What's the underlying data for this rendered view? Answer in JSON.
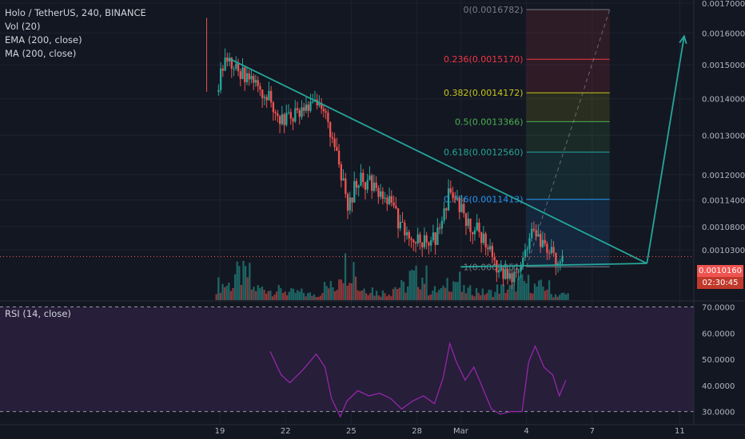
{
  "legend": {
    "symbol": "Holo / TetherUS, 240, BINANCE",
    "vol": "Vol (20)",
    "ema": "EMA (200, close)",
    "ma": "MA (200, close)",
    "rsi": "RSI (14, close)"
  },
  "colors": {
    "background": "#131722",
    "bull": "#26a69a",
    "bear": "#ef5350",
    "trendline": "#26a69a",
    "rsi_line": "#9c27b0",
    "rsi_band": "#2a1f3d",
    "price_tag": "#ef5350",
    "countdown_tag": "#ef5350"
  },
  "price_tag": "0.0010160",
  "countdown": "02:30:45",
  "chart_data": [
    {
      "type": "candlestick",
      "title": "Holo / TetherUS, 240, BINANCE",
      "price_scale": "log",
      "ylim": [
        0.00093,
        0.0017
      ],
      "y_ticks": [
        0.0017,
        0.0016,
        0.0015,
        0.0014,
        0.0013,
        0.0012,
        0.00114,
        0.00108,
        0.00103
      ],
      "y_tick_labels": [
        "0.0017000",
        "0.0016000",
        "0.0015000",
        "0.0014000",
        "0.0013000",
        "0.0012000",
        "0.0011400",
        "0.0010800",
        "0.0010300"
      ],
      "x_tick_labels": [
        "19",
        "22",
        "25",
        "28",
        "Mar",
        "4",
        "7",
        "11"
      ],
      "x_ticks_day": [
        0,
        3,
        6,
        9,
        11,
        14,
        17,
        21
      ],
      "close_path": [
        {
          "t": -0.1,
          "v": 0.00142
        },
        {
          "t": 0.0,
          "v": 0.00148
        },
        {
          "t": 0.4,
          "v": 0.00152
        },
        {
          "t": 0.9,
          "v": 0.00147
        },
        {
          "t": 1.5,
          "v": 0.00146
        },
        {
          "t": 2.2,
          "v": 0.0014
        },
        {
          "t": 2.8,
          "v": 0.00134
        },
        {
          "t": 3.5,
          "v": 0.00136
        },
        {
          "t": 4.2,
          "v": 0.00138
        },
        {
          "t": 4.8,
          "v": 0.00137
        },
        {
          "t": 5.3,
          "v": 0.00124
        },
        {
          "t": 5.8,
          "v": 0.00113
        },
        {
          "t": 6.3,
          "v": 0.00119
        },
        {
          "t": 6.8,
          "v": 0.00118
        },
        {
          "t": 7.3,
          "v": 0.00115
        },
        {
          "t": 7.8,
          "v": 0.00113
        },
        {
          "t": 8.3,
          "v": 0.00107
        },
        {
          "t": 8.8,
          "v": 0.00106
        },
        {
          "t": 9.3,
          "v": 0.00105
        },
        {
          "t": 9.9,
          "v": 0.00106
        },
        {
          "t": 10.4,
          "v": 0.00115
        },
        {
          "t": 10.8,
          "v": 0.00113
        },
        {
          "t": 11.3,
          "v": 0.00109
        },
        {
          "t": 11.8,
          "v": 0.00107
        },
        {
          "t": 12.3,
          "v": 0.00103
        },
        {
          "t": 12.8,
          "v": 0.00098
        },
        {
          "t": 13.3,
          "v": 0.00097
        },
        {
          "t": 13.8,
          "v": 0.00101
        },
        {
          "t": 14.2,
          "v": 0.00107
        },
        {
          "t": 14.6,
          "v": 0.00104
        },
        {
          "t": 15.0,
          "v": 0.00103
        },
        {
          "t": 15.4,
          "v": 0.00101
        },
        {
          "t": 15.7,
          "v": 0.001016
        }
      ],
      "volume_relative": [
        0.4,
        0.65,
        0.3,
        0.25,
        0.2,
        0.15,
        0.35,
        0.9,
        0.3,
        0.2,
        0.35,
        0.6,
        0.25,
        0.5,
        0.25,
        0.2,
        0.3,
        0.45,
        0.35,
        0.15
      ]
    },
    {
      "type": "fibonacci_retracement",
      "levels": [
        {
          "ratio": "0",
          "value": 0.0016782,
          "label": "0(0.0016782)",
          "color": "#787b86"
        },
        {
          "ratio": "0.236",
          "value": 0.001517,
          "label": "0.236(0.0015170)",
          "color": "#f23645"
        },
        {
          "ratio": "0.382",
          "value": 0.0014172,
          "label": "0.382(0.0014172)",
          "color": "#c6c619"
        },
        {
          "ratio": "0.5",
          "value": 0.0013366,
          "label": "0.5(0.0013366)",
          "color": "#4caf50"
        },
        {
          "ratio": "0.618",
          "value": 0.001256,
          "label": "0.618(0.0012560)",
          "color": "#26a69a"
        },
        {
          "ratio": "0.786",
          "value": 0.0011413,
          "label": "0.786(0.0011413)",
          "color": "#2196f3"
        },
        {
          "ratio": "1",
          "value": 0.0009951,
          "label": "1(0.0009951)",
          "color": "#787b86"
        }
      ]
    },
    {
      "type": "trendline",
      "lines": [
        {
          "from": {
            "t": 0.4,
            "v": 0.00152
          },
          "to": {
            "t": 19.5,
            "v": 0.001002
          }
        },
        {
          "from": {
            "t": 11.0,
            "v": 0.000995
          },
          "to": {
            "t": 19.5,
            "v": 0.001002
          }
        }
      ],
      "arrow": {
        "from": {
          "t": 19.5,
          "v": 0.001002
        },
        "to": {
          "t": 21.2,
          "v": 0.00159
        }
      }
    },
    {
      "type": "line",
      "title": "RSI (14, close)",
      "ylim": [
        25,
        72
      ],
      "y_ticks": [
        70,
        60,
        50,
        40,
        30
      ],
      "y_tick_labels": [
        "70.0000",
        "60.0000",
        "50.0000",
        "40.0000",
        "30.0000"
      ],
      "bands": [
        70,
        30
      ],
      "points": [
        {
          "t": 2.3,
          "v": 53
        },
        {
          "t": 2.8,
          "v": 44
        },
        {
          "t": 3.2,
          "v": 41
        },
        {
          "t": 3.8,
          "v": 46
        },
        {
          "t": 4.4,
          "v": 52
        },
        {
          "t": 4.8,
          "v": 47
        },
        {
          "t": 5.1,
          "v": 35
        },
        {
          "t": 5.5,
          "v": 28
        },
        {
          "t": 5.8,
          "v": 34
        },
        {
          "t": 6.3,
          "v": 38
        },
        {
          "t": 6.8,
          "v": 36
        },
        {
          "t": 7.3,
          "v": 37
        },
        {
          "t": 7.8,
          "v": 35
        },
        {
          "t": 8.3,
          "v": 31
        },
        {
          "t": 8.8,
          "v": 34
        },
        {
          "t": 9.3,
          "v": 36
        },
        {
          "t": 9.8,
          "v": 33
        },
        {
          "t": 10.2,
          "v": 43
        },
        {
          "t": 10.5,
          "v": 56
        },
        {
          "t": 10.8,
          "v": 49
        },
        {
          "t": 11.2,
          "v": 42
        },
        {
          "t": 11.6,
          "v": 47
        },
        {
          "t": 12.0,
          "v": 39
        },
        {
          "t": 12.4,
          "v": 31
        },
        {
          "t": 12.8,
          "v": 29
        },
        {
          "t": 13.3,
          "v": 30
        },
        {
          "t": 13.8,
          "v": 30
        },
        {
          "t": 14.1,
          "v": 49
        },
        {
          "t": 14.4,
          "v": 55
        },
        {
          "t": 14.8,
          "v": 47
        },
        {
          "t": 15.2,
          "v": 44
        },
        {
          "t": 15.5,
          "v": 36
        },
        {
          "t": 15.8,
          "v": 42
        }
      ]
    }
  ]
}
